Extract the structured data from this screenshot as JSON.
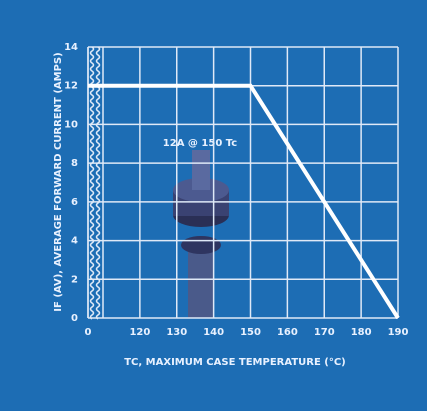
{
  "chart_data": {
    "type": "line",
    "xlabel": "TC, MAXIMUM CASE TEMPERATURE (°C)",
    "ylabel": "IF (AV), AVERAGE FORWARD CURRENT (AMPS)",
    "annotation": "12A @ 150 Tc",
    "x": [
      0,
      150,
      190
    ],
    "series": [
      {
        "name": "IF (AV)",
        "color": "#ffffff",
        "values": [
          12,
          12,
          0
        ]
      }
    ],
    "xlim": [
      110,
      190
    ],
    "xticks": [
      0,
      120,
      130,
      140,
      150,
      160,
      170,
      180,
      190
    ],
    "axis_break": true,
    "ylim": [
      0,
      14
    ],
    "yticks": [
      0,
      2,
      4,
      6,
      8,
      10,
      12,
      14
    ],
    "grid": true,
    "background": "#1d6db4"
  }
}
